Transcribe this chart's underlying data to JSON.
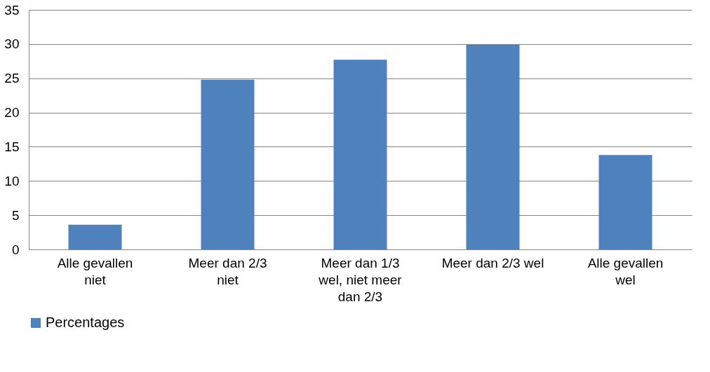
{
  "chart_data": {
    "type": "bar",
    "categories": [
      "Alle gevallen niet",
      "Meer dan 2/3 niet",
      "Meer dan 1/3 wel, niet meer dan 2/3",
      "Meer dan 2/3 wel",
      "Alle gevallen wel"
    ],
    "series": [
      {
        "name": "Percentages",
        "color": "#4f81bd",
        "values": [
          3.6,
          24.8,
          27.7,
          29.9,
          13.8
        ]
      }
    ],
    "ylim": [
      0,
      35
    ],
    "yticks": [
      0,
      5,
      10,
      15,
      20,
      25,
      30,
      35
    ],
    "grid": "y",
    "legend": "bottom"
  }
}
